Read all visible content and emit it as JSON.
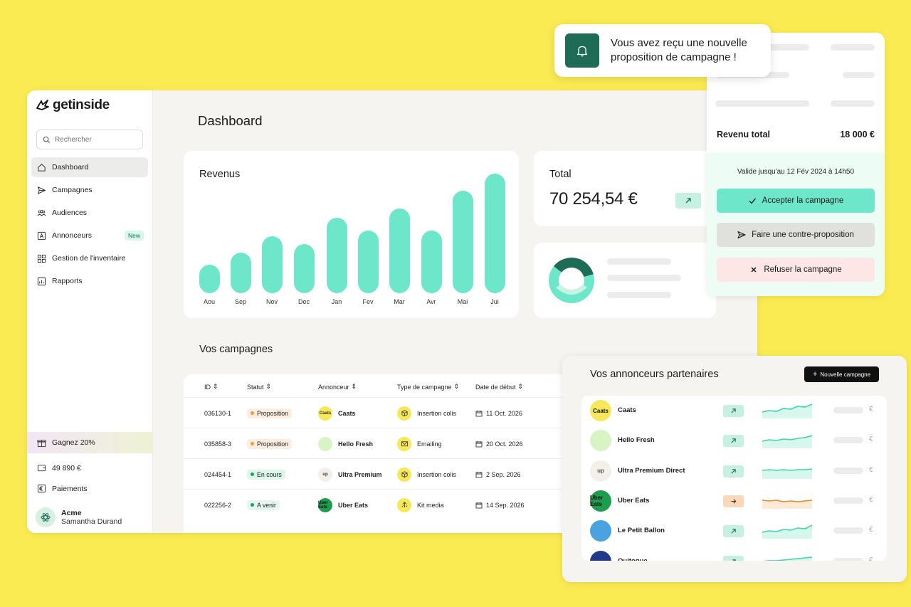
{
  "app": {
    "name": "getinside"
  },
  "sidebar": {
    "search_placeholder": "Rechercher",
    "items": [
      {
        "label": "Dashboard",
        "icon": "home-icon"
      },
      {
        "label": "Campagnes",
        "icon": "send-icon"
      },
      {
        "label": "Audiences",
        "icon": "users-icon"
      },
      {
        "label": "Annonceurs",
        "icon": "advertiser-icon",
        "badge": "New"
      },
      {
        "label": "Gestion de l'inventaire",
        "icon": "grid-icon"
      },
      {
        "label": "Rapports",
        "icon": "report-icon"
      }
    ],
    "promo": "Gagnez 20%",
    "balance": "49 890 €",
    "payments": "Paiements",
    "user": {
      "org": "Acme",
      "name": "Samantha Durand"
    }
  },
  "dashboard": {
    "title": "Dashboard",
    "revenue": {
      "title": "Revenus",
      "chart_data": {
        "type": "bar",
        "categories": [
          "Aou",
          "Sep",
          "Nov",
          "Dec",
          "Jan",
          "Fev",
          "Mar",
          "Avr",
          "Mai",
          "Jui"
        ],
        "values": [
          40,
          57,
          80,
          69,
          106,
          88,
          119,
          88,
          144,
          168
        ],
        "color": "#6ee6c9"
      }
    },
    "total": {
      "title": "Total",
      "amount": "70 254,54 €"
    },
    "donut": {
      "values": [
        35,
        65
      ],
      "colors": [
        "#1e6b56",
        "#6ee6c9"
      ]
    }
  },
  "campaigns": {
    "title": "Vos campagnes",
    "columns": [
      "ID",
      "Statut",
      "Annonceur",
      "Type de campagne",
      "Date de début"
    ],
    "rows": [
      {
        "id": "036130-1",
        "status": "Proposition",
        "status_kind": "prop",
        "advertiser": "Caats",
        "logo_text": "Caats",
        "logo_bg": "#f7e85a",
        "type": "Insertion colis",
        "date": "11 Oct. 2026"
      },
      {
        "id": "035858-3",
        "status": "Proposition",
        "status_kind": "prop",
        "advertiser": "Hello Fresh",
        "logo_text": "",
        "logo_bg": "#d8f3c4",
        "type": "Emailing",
        "date": "20 Oct. 2026"
      },
      {
        "id": "024454-1",
        "status": "En cours",
        "status_kind": "cours",
        "advertiser": "Ultra Premium",
        "logo_text": "up",
        "logo_bg": "#f3f0ea",
        "type": "Insertion colis",
        "date": "2 Sep. 2026"
      },
      {
        "id": "022256-2",
        "status": "A venir",
        "status_kind": "venir",
        "advertiser": "Uber Eats",
        "logo_text": "Uber Eats",
        "logo_bg": "#1f9d4e",
        "type": "Kit media",
        "date": "14 Sep. 2026"
      }
    ]
  },
  "notification": {
    "message": "Vous avez reçu une nouvelle proposition de campagne !"
  },
  "offer": {
    "total_label": "Revenu total",
    "total_value": "18 000 €",
    "valid_until": "Valide jusqu'au 12 Fév 2024 à 14h50",
    "accept": "Accepter la campagne",
    "counter": "Faire une contre-proposition",
    "refuse": "Refuser la campagne",
    "colors": {
      "accept": "#6ee6c9",
      "counter": "#e0e0dc",
      "refuse": "#fde6e6"
    }
  },
  "partners": {
    "title": "Vos annonceurs partenaires",
    "new_button": "Nouvelle campagne",
    "currency": "€",
    "items": [
      {
        "name": "Caats",
        "logo_text": "Caats",
        "logo_bg": "#f7e85a",
        "logo_color": "#111",
        "trend": "up",
        "spark": [
          15,
          13,
          14,
          10,
          11,
          7,
          8,
          4
        ]
      },
      {
        "name": "Hello Fresh",
        "logo_text": "",
        "logo_bg": "#d8f3c4",
        "logo_color": "#4aa83a",
        "trend": "up",
        "spark": [
          14,
          12,
          13,
          11,
          12,
          10,
          9,
          6
        ]
      },
      {
        "name": "Ultra Premium Direct",
        "logo_text": "up",
        "logo_bg": "#f3f0ea",
        "logo_color": "#555",
        "trend": "up",
        "spark": [
          12,
          11,
          12,
          11,
          12,
          11,
          11,
          10
        ]
      },
      {
        "name": "Uber Eats",
        "logo_text": "Uber Eats",
        "logo_bg": "#1f9d4e",
        "logo_color": "#111",
        "trend": "flat",
        "spark": [
          12,
          13,
          12,
          14,
          13,
          14,
          13,
          12
        ]
      },
      {
        "name": "Le Petit Ballon",
        "logo_text": "",
        "logo_bg": "#4aa3e0",
        "logo_color": "#fff",
        "trend": "up",
        "spark": [
          15,
          13,
          14,
          11,
          12,
          9,
          10,
          5
        ]
      },
      {
        "name": "Quitoque",
        "logo_text": "",
        "logo_bg": "#223a8a",
        "logo_color": "#fff",
        "trend": "up",
        "spark": [
          13,
          12,
          12,
          11,
          10,
          9,
          8,
          7
        ]
      }
    ]
  }
}
